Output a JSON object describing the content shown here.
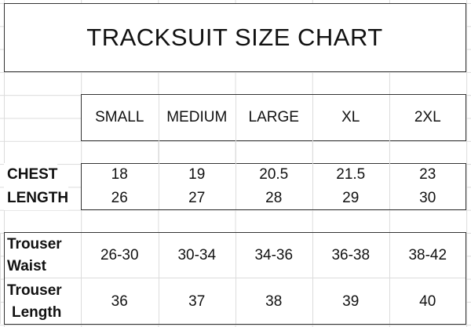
{
  "title": "TRACKSUIT SIZE CHART",
  "sizes": [
    "SMALL",
    "MEDIUM",
    "LARGE",
    "XL",
    "2XL"
  ],
  "top_rows": [
    {
      "label": "CHEST",
      "values": [
        "18",
        "19",
        "20.5",
        "21.5",
        "23"
      ]
    },
    {
      "label": "LENGTH",
      "values": [
        "26",
        "27",
        "28",
        "29",
        "30"
      ]
    }
  ],
  "trouser_rows": [
    {
      "label_line1": "Trouser",
      "label_line2": "Waist",
      "values": [
        "26-30",
        "30-34",
        "34-36",
        "36-38",
        "38-42"
      ]
    },
    {
      "label_line1": "Trouser",
      "label_line2": "Length",
      "values": [
        "36",
        "37",
        "38",
        "39",
        "40"
      ]
    }
  ]
}
